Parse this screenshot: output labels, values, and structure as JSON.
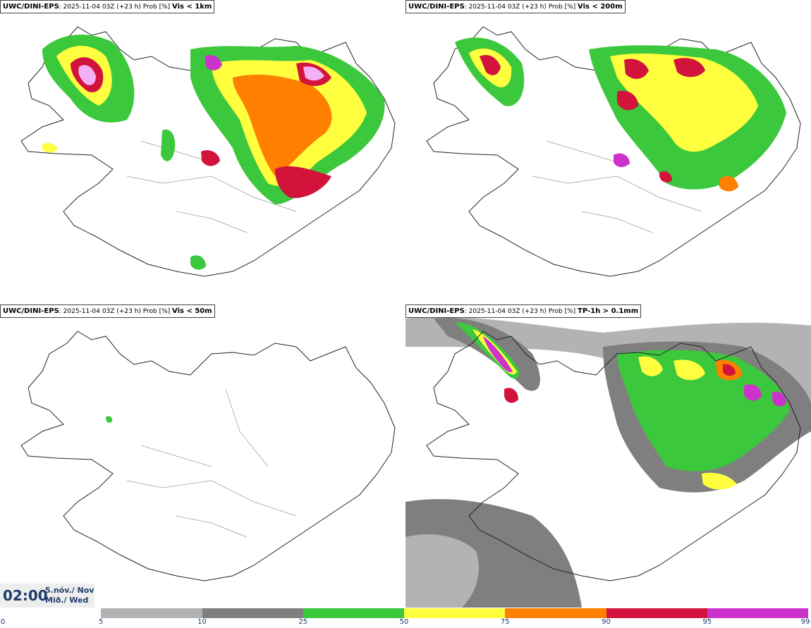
{
  "panels": [
    {
      "model": "UWC/DINI-EPS",
      "run": ": 2025-11-04 03Z (+23 h) Prob [%] ",
      "variable": "Vis < 1km"
    },
    {
      "model": "UWC/DINI-EPS",
      "run": ": 2025-11-04 03Z (+23 h) Prob [%] ",
      "variable": "Vis < 200m"
    },
    {
      "model": "UWC/DINI-EPS",
      "run": ": 2025-11-04 03Z (+23 h) Prob [%] ",
      "variable": "Vis < 50m"
    },
    {
      "model": "UWC/DINI-EPS",
      "run": ": 2025-11-04 03Z (+23 h) Prob [%] ",
      "variable": "TP-1h > 0.1mm"
    }
  ],
  "valid_time": {
    "hour": "02:00",
    "date_line1": "5.nóv./ Nov",
    "date_line2": "Mið./ Wed"
  },
  "legend": {
    "ticks": [
      "0",
      "5",
      "10",
      "25",
      "50",
      "75",
      "90",
      "95",
      "99"
    ],
    "colors": [
      "#ffffff",
      "#b3b3b3",
      "#7f7f7f",
      "#3cc83c",
      "#ffff40",
      "#ff7f00",
      "#d2143c",
      "#cc33cc",
      "#f4b0f4"
    ]
  }
}
